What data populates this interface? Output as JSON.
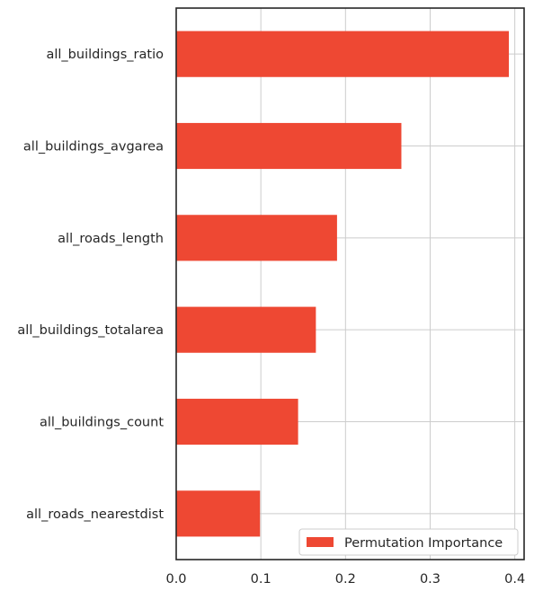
{
  "chart_data": {
    "type": "bar",
    "orientation": "horizontal",
    "categories": [
      "all_buildings_ratio",
      "all_buildings_avgarea",
      "all_roads_length",
      "all_buildings_totalarea",
      "all_buildings_count",
      "all_roads_nearestdist"
    ],
    "series": [
      {
        "name": "Permutation Importance",
        "color": "#ee4833",
        "values": [
          0.393,
          0.266,
          0.19,
          0.165,
          0.144,
          0.099
        ]
      }
    ],
    "xticks": [
      "0.0",
      "0.1",
      "0.2",
      "0.3",
      "0.4"
    ],
    "xlim": [
      0,
      0.411
    ],
    "grid": true,
    "legend_position": "bottom-right",
    "title": "",
    "xlabel": "",
    "ylabel": ""
  }
}
